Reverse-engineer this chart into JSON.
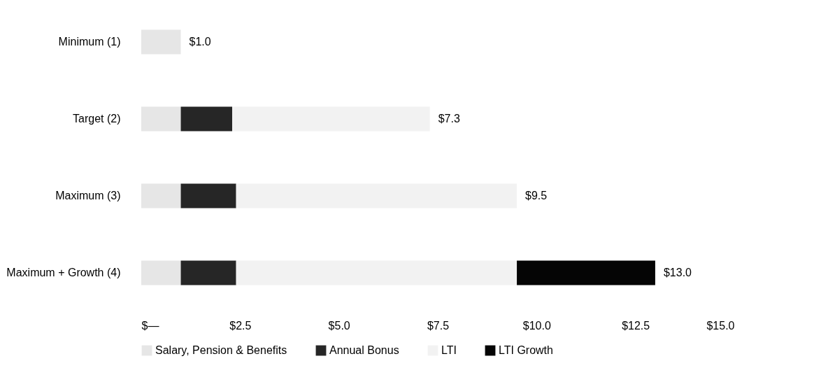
{
  "chart_data": {
    "type": "bar",
    "orientation": "horizontal",
    "stacked": true,
    "categories": [
      "Minimum (1)",
      "Target (2)",
      "Maximum (3)",
      "Maximum + Growth (4)"
    ],
    "series": [
      {
        "name": "Salary, Pension & Benefits",
        "color": "#e6e6e6",
        "values": [
          1.0,
          1.0,
          1.0,
          1.0
        ]
      },
      {
        "name": "Annual Bonus",
        "color": "#262626",
        "values": [
          null,
          1.3,
          1.4,
          1.4
        ]
      },
      {
        "name": "LTI",
        "color": "#f2f2f2",
        "values": [
          null,
          5.0,
          7.1,
          7.1
        ]
      },
      {
        "name": "LTI Growth",
        "color": "#050505",
        "values": [
          null,
          null,
          null,
          3.5
        ]
      }
    ],
    "totals": [
      "$1.0",
      "$7.3",
      "$9.5",
      "$13.0"
    ],
    "xlim": [
      0,
      15
    ],
    "xticks": [
      {
        "value": 0,
        "label": "$—"
      },
      {
        "value": 2.5,
        "label": "$2.5"
      },
      {
        "value": 5,
        "label": "$5.0"
      },
      {
        "value": 7.5,
        "label": "$7.5"
      },
      {
        "value": 10,
        "label": "$10.0"
      },
      {
        "value": 12.5,
        "label": "$12.5"
      },
      {
        "value": 15,
        "label": "$15.0"
      }
    ],
    "grid": false,
    "legend": "bottom"
  }
}
